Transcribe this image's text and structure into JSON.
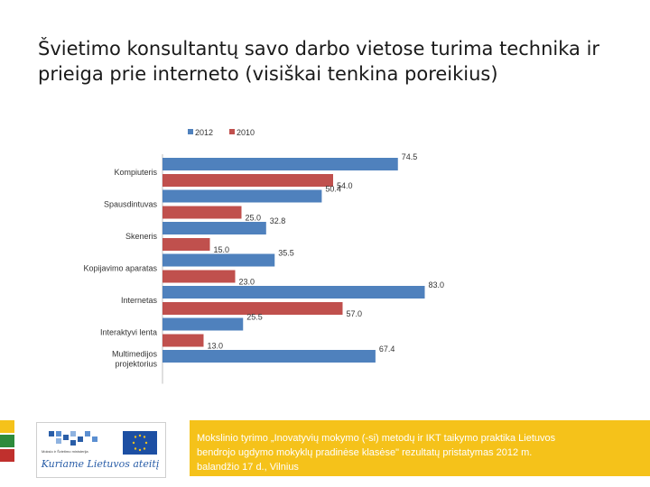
{
  "page": {
    "title": "Švietimo konsultantų savo darbo vietose turima technika ir prieiga prie interneto (visiškai tenkina poreikius)"
  },
  "chart_data": {
    "type": "bar",
    "orientation": "horizontal",
    "categories": [
      "Kompiuteris",
      "Spausdintuvas",
      "Skeneris",
      "Kopijavimo aparatas",
      "Internetas",
      "Interaktyvi lenta",
      "Multimedijos projektorius"
    ],
    "series": [
      {
        "name": "2012",
        "color": "#4f81bd",
        "values": [
          74.5,
          50.4,
          32.8,
          35.5,
          83.0,
          25.5,
          67.4
        ]
      },
      {
        "name": "2010",
        "color": "#c0504d",
        "values": [
          54.0,
          25.0,
          15.0,
          23.0,
          57.0,
          13.0,
          null
        ]
      }
    ],
    "value_labels": {
      "2012": [
        "74.5",
        "50.4",
        "32.8",
        "35.5",
        "83.0",
        "25.5",
        "67.4"
      ],
      "2010": [
        "54.0",
        "25.0",
        "15.0",
        "23.0",
        "57.0",
        "13.0",
        ""
      ]
    },
    "xlim": [
      0,
      90
    ],
    "legend_position": "top-left",
    "grid": false
  },
  "footer": {
    "logo_caption": "Kuriame Lietuvos ateitį",
    "logo_small_text": "Mokslo ir Švietimo ministerija",
    "banner_line1": "Mokslinio tyrimo „Inovatyvių mokymo (-si) metodų ir IKT taikymo praktika Lietuvos",
    "banner_line2": "bendrojo ugdymo mokyklų pradinėse klasėse\" rezultatų pristatymas 2012 m.",
    "banner_line3": "balandžio 17 d., Vilnius",
    "strip_colors": [
      "#f5c21a",
      "#2e8b3c",
      "#c0302d"
    ]
  }
}
